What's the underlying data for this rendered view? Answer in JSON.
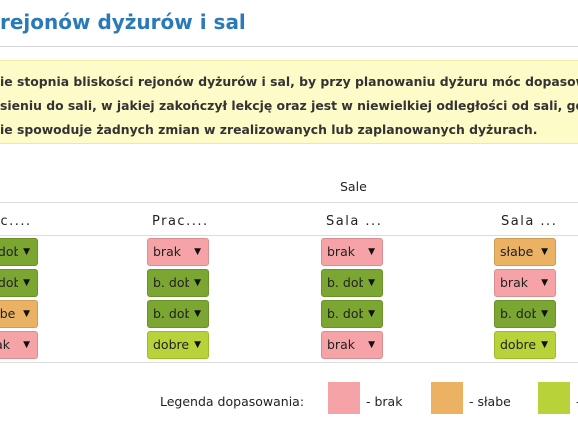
{
  "page": {
    "title": "rejonów dyżurów i sal",
    "info_lines": [
      "ie stopnia bliskości rejonów dyżurów i sal, by przy planowaniu dyżuru móc dopasować",
      "sieniu do sali, w jakiej zakończył lekcję oraz jest w niewielkiej odległości od sali, gdzie",
      "ie spowoduje żadnych zmian w zrealizowanych lub zaplanowanych dyżurach."
    ]
  },
  "table": {
    "group_header": "Sale",
    "columns": [
      "ac....",
      "Prac....",
      "Sala ...",
      "Sala ..."
    ],
    "rows": [
      [
        {
          "label": "b. dobre",
          "level": "bdobre"
        },
        {
          "label": "brak",
          "level": "brak"
        },
        {
          "label": "brak",
          "level": "brak"
        },
        {
          "label": "słabe",
          "level": "slabe"
        }
      ],
      [
        {
          "label": "b. dobre",
          "level": "bdobre"
        },
        {
          "label": "b. dobre",
          "level": "bdobre"
        },
        {
          "label": "b. dobre",
          "level": "bdobre"
        },
        {
          "label": "brak",
          "level": "brak"
        }
      ],
      [
        {
          "label": "słabe",
          "level": "slabe"
        },
        {
          "label": "b. dobre",
          "level": "bdobre"
        },
        {
          "label": "b. dobre",
          "level": "bdobre"
        },
        {
          "label": "b. dobre",
          "level": "bdobre"
        }
      ],
      [
        {
          "label": "brak",
          "level": "brak"
        },
        {
          "label": "dobre",
          "level": "dobre"
        },
        {
          "label": "brak",
          "level": "brak"
        },
        {
          "label": "dobre",
          "level": "dobre"
        }
      ]
    ]
  },
  "legend": {
    "label": "Legenda dopasowania:",
    "items": [
      {
        "color": "#f6a3a7",
        "text": "- brak"
      },
      {
        "color": "#eab262",
        "text": "- słabe"
      },
      {
        "color": "#b8d23a",
        "text": "- "
      }
    ]
  },
  "dropdown_icon": "triangle-down-icon"
}
